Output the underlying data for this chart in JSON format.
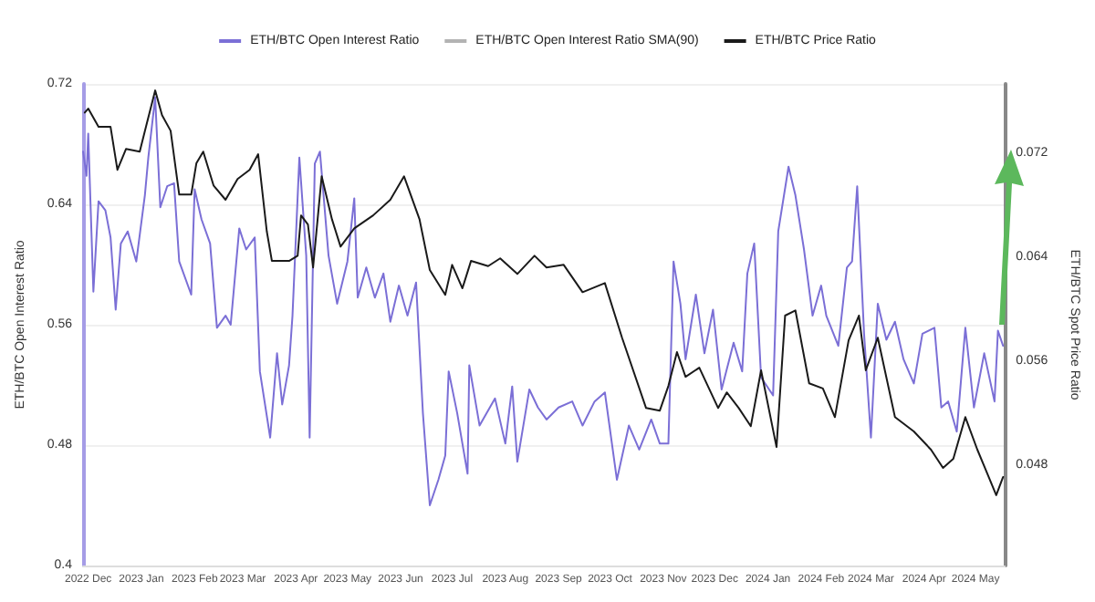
{
  "chart_data": {
    "type": "line",
    "ylabel": "ETH/BTC Open Interest Ratio",
    "y2label": "ETH/BTC Spot Price Ratio",
    "xlim": [
      "2022-11-28",
      "2024-05-18"
    ],
    "xticks": [
      {
        "value": "2022-12-01",
        "label": "2022 Dec"
      },
      {
        "value": "2023-01-01",
        "label": "2023 Jan"
      },
      {
        "value": "2023-02-01",
        "label": "2023 Feb"
      },
      {
        "value": "2023-03-01",
        "label": "2023 Mar"
      },
      {
        "value": "2023-04-01",
        "label": "2023 Apr"
      },
      {
        "value": "2023-05-01",
        "label": "2023 May"
      },
      {
        "value": "2023-06-01",
        "label": "2023 Jun"
      },
      {
        "value": "2023-07-01",
        "label": "2023 Jul"
      },
      {
        "value": "2023-08-01",
        "label": "2023 Aug"
      },
      {
        "value": "2023-09-01",
        "label": "2023 Sep"
      },
      {
        "value": "2023-10-01",
        "label": "2023 Oct"
      },
      {
        "value": "2023-11-01",
        "label": "2023 Nov"
      },
      {
        "value": "2023-12-01",
        "label": "2023 Dec"
      },
      {
        "value": "2024-01-01",
        "label": "2024 Jan"
      },
      {
        "value": "2024-02-01",
        "label": "2024 Feb"
      },
      {
        "value": "2024-03-01",
        "label": "2024 Mar"
      },
      {
        "value": "2024-04-01",
        "label": "2024 Apr"
      },
      {
        "value": "2024-05-01",
        "label": "2024 May"
      }
    ],
    "ylim": [
      0.4,
      0.72
    ],
    "yticks": [
      0.4,
      0.48,
      0.56,
      0.64,
      0.72
    ],
    "y2lim": [
      0.0403,
      0.0773
    ],
    "y2ticks": [
      0.048,
      0.056,
      0.064,
      0.072
    ],
    "grid": "y",
    "legend": "top",
    "marker": "none",
    "line_style": "solid",
    "series": [
      {
        "name": "ETH/BTC Open Interest Ratio",
        "color": "#7b6fd6",
        "x": [
          "2022-11-28",
          "2022-11-30",
          "2022-12-01",
          "2022-12-04",
          "2022-12-07",
          "2022-12-11",
          "2022-12-14",
          "2022-12-17",
          "2022-12-20",
          "2022-12-24",
          "2022-12-29",
          "2023-01-03",
          "2023-01-05",
          "2023-01-09",
          "2023-01-12",
          "2023-01-16",
          "2023-01-20",
          "2023-01-23",
          "2023-01-30",
          "2023-02-01",
          "2023-02-05",
          "2023-02-10",
          "2023-02-14",
          "2023-02-19",
          "2023-02-22",
          "2023-02-27",
          "2023-03-03",
          "2023-03-08",
          "2023-03-11",
          "2023-03-17",
          "2023-03-21",
          "2023-03-24",
          "2023-03-28",
          "2023-03-30",
          "2023-04-03",
          "2023-04-07",
          "2023-04-09",
          "2023-04-12",
          "2023-04-15",
          "2023-04-20",
          "2023-04-25",
          "2023-05-01",
          "2023-05-05",
          "2023-05-07",
          "2023-05-12",
          "2023-05-17",
          "2023-05-22",
          "2023-05-26",
          "2023-05-31",
          "2023-06-05",
          "2023-06-10",
          "2023-06-14",
          "2023-06-18",
          "2023-06-23",
          "2023-06-27",
          "2023-06-29",
          "2023-07-04",
          "2023-07-10",
          "2023-07-11",
          "2023-07-17",
          "2023-07-26",
          "2023-08-01",
          "2023-08-05",
          "2023-08-08",
          "2023-08-15",
          "2023-08-20",
          "2023-08-25",
          "2023-09-01",
          "2023-09-09",
          "2023-09-15",
          "2023-09-22",
          "2023-09-28",
          "2023-10-05",
          "2023-10-12",
          "2023-10-18",
          "2023-10-25",
          "2023-10-30",
          "2023-11-04",
          "2023-11-07",
          "2023-11-11",
          "2023-11-14",
          "2023-11-20",
          "2023-11-25",
          "2023-11-30",
          "2023-12-05",
          "2023-12-12",
          "2023-12-17",
          "2023-12-20",
          "2023-12-24",
          "2023-12-28",
          "2024-01-04",
          "2024-01-07",
          "2024-01-13",
          "2024-01-17",
          "2024-01-22",
          "2024-01-27",
          "2024-02-01",
          "2024-02-04",
          "2024-02-11",
          "2024-02-16",
          "2024-02-19",
          "2024-02-22",
          "2024-02-26",
          "2024-03-01",
          "2024-03-05",
          "2024-03-10",
          "2024-03-15",
          "2024-03-20",
          "2024-03-26",
          "2024-03-31",
          "2024-04-07",
          "2024-04-11",
          "2024-04-15",
          "2024-04-20",
          "2024-04-25",
          "2024-04-30",
          "2024-05-06",
          "2024-05-12",
          "2024-05-14",
          "2024-05-17"
        ],
        "values": [
          0.675,
          0.659,
          0.687,
          0.582,
          0.642,
          0.636,
          0.618,
          0.57,
          0.614,
          0.622,
          0.602,
          0.646,
          0.671,
          0.711,
          0.638,
          0.652,
          0.654,
          0.602,
          0.58,
          0.65,
          0.63,
          0.614,
          0.558,
          0.566,
          0.56,
          0.624,
          0.61,
          0.618,
          0.529,
          0.485,
          0.541,
          0.507,
          0.533,
          0.566,
          0.671,
          0.606,
          0.485,
          0.667,
          0.675,
          0.606,
          0.574,
          0.602,
          0.644,
          0.578,
          0.598,
          0.578,
          0.594,
          0.562,
          0.586,
          0.566,
          0.588,
          0.501,
          0.44,
          0.457,
          0.473,
          0.529,
          0.501,
          0.461,
          0.533,
          0.493,
          0.511,
          0.481,
          0.519,
          0.469,
          0.517,
          0.505,
          0.497,
          0.505,
          0.509,
          0.493,
          0.509,
          0.515,
          0.457,
          0.493,
          0.477,
          0.497,
          0.481,
          0.481,
          0.602,
          0.574,
          0.537,
          0.58,
          0.541,
          0.57,
          0.517,
          0.548,
          0.529,
          0.594,
          0.614,
          0.525,
          0.513,
          0.622,
          0.665,
          0.646,
          0.61,
          0.566,
          0.586,
          0.566,
          0.546,
          0.598,
          0.602,
          0.652,
          0.554,
          0.485,
          0.574,
          0.55,
          0.562,
          0.537,
          0.521,
          0.554,
          0.558,
          0.505,
          0.509,
          0.489,
          0.558,
          0.505,
          0.541,
          0.509,
          0.556,
          0.546
        ]
      },
      {
        "name": "ETH/BTC Open Interest Ratio SMA(90)",
        "color": "#b3b3b3"
      },
      {
        "name": "ETH/BTC Price Ratio",
        "color": "#1a1a1a",
        "axis": "y2",
        "x": [
          "2022-11-29",
          "2022-12-01",
          "2022-12-07",
          "2022-12-14",
          "2022-12-18",
          "2022-12-23",
          "2022-12-31",
          "2023-01-04",
          "2023-01-09",
          "2023-01-13",
          "2023-01-18",
          "2023-01-23",
          "2023-01-30",
          "2023-02-02",
          "2023-02-06",
          "2023-02-12",
          "2023-02-19",
          "2023-02-26",
          "2023-03-05",
          "2023-03-10",
          "2023-03-15",
          "2023-03-18",
          "2023-03-28",
          "2023-04-02",
          "2023-04-04",
          "2023-04-08",
          "2023-04-11",
          "2023-04-16",
          "2023-04-22",
          "2023-04-27",
          "2023-05-05",
          "2023-05-16",
          "2023-05-26",
          "2023-06-03",
          "2023-06-12",
          "2023-06-18",
          "2023-06-27",
          "2023-07-01",
          "2023-07-07",
          "2023-07-12",
          "2023-07-22",
          "2023-07-29",
          "2023-08-08",
          "2023-08-18",
          "2023-08-25",
          "2023-09-04",
          "2023-09-15",
          "2023-09-28",
          "2023-10-08",
          "2023-10-22",
          "2023-10-30",
          "2023-11-04",
          "2023-11-09",
          "2023-11-14",
          "2023-11-22",
          "2023-12-03",
          "2023-12-08",
          "2023-12-15",
          "2023-12-22",
          "2023-12-28",
          "2024-01-06",
          "2024-01-11",
          "2024-01-17",
          "2024-01-25",
          "2024-02-02",
          "2024-02-09",
          "2024-02-17",
          "2024-02-23",
          "2024-02-27",
          "2024-03-05",
          "2024-03-15",
          "2024-03-26",
          "2024-04-05",
          "2024-04-12",
          "2024-04-18",
          "2024-04-25",
          "2024-05-02",
          "2024-05-08",
          "2024-05-13",
          "2024-05-17"
        ],
        "values": [
          0.0751,
          0.0754,
          0.074,
          0.074,
          0.0707,
          0.0723,
          0.0721,
          0.0742,
          0.0768,
          0.0749,
          0.0737,
          0.0688,
          0.0688,
          0.0712,
          0.0721,
          0.0695,
          0.0684,
          0.07,
          0.0707,
          0.0719,
          0.066,
          0.0637,
          0.0637,
          0.0641,
          0.0672,
          0.0665,
          0.0632,
          0.0702,
          0.0669,
          0.0648,
          0.0662,
          0.0672,
          0.0684,
          0.0702,
          0.0669,
          0.063,
          0.0611,
          0.0634,
          0.0616,
          0.0637,
          0.0633,
          0.0639,
          0.0627,
          0.0641,
          0.0632,
          0.0634,
          0.0613,
          0.062,
          0.0578,
          0.0524,
          0.0522,
          0.0541,
          0.0567,
          0.0548,
          0.0555,
          0.0524,
          0.0536,
          0.0524,
          0.051,
          0.0553,
          0.0494,
          0.0595,
          0.0599,
          0.0543,
          0.0539,
          0.0517,
          0.0576,
          0.0595,
          0.0553,
          0.0578,
          0.0517,
          0.0506,
          0.0492,
          0.0478,
          0.0485,
          0.0517,
          0.0492,
          0.0473,
          0.0457,
          0.0471
        ]
      }
    ]
  }
}
